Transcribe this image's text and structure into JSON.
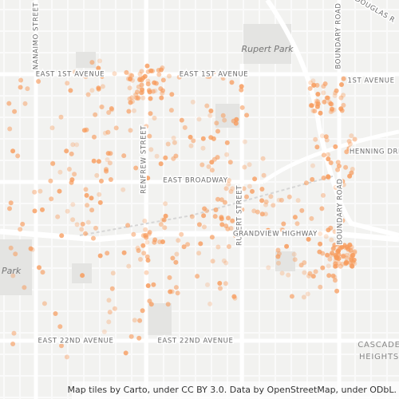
{
  "map": {
    "labels": [
      "NANAIMO STREET",
      "RENFREW STREET",
      "RUPERT STREET",
      "BOUNDARY ROAD",
      "BOUNDARY ROAD",
      "EAST 1ST AVENUE",
      "EAST 1ST AVENUE",
      "1ST AVENUE",
      "EAST BROADWAY",
      "GRANDVIEW HIGHWAY",
      "EAST 22ND AVENUE",
      "EAST 22ND AVENUE",
      "HENNING DRI",
      "DOUGLAS R"
    ],
    "places": [
      "Rupert Park",
      "Park",
      "CASCADE",
      "HEIGHTS"
    ],
    "attribution": "Map tiles by Carto, under CC BY 3.0. Data by OpenStreetMap, under ODbL."
  }
}
